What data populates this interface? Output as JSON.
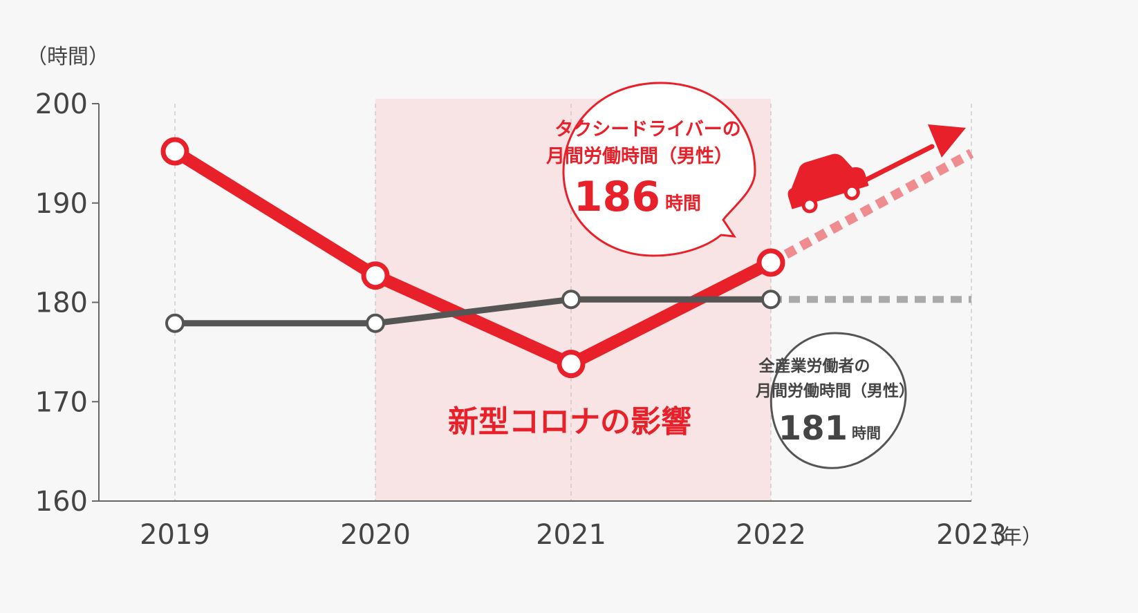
{
  "chart_data": {
    "type": "line",
    "y_unit_label": "（時間）",
    "x_unit_label": "（年）",
    "ylim": [
      160,
      200
    ],
    "y_ticks": [
      200,
      190,
      180,
      170,
      160
    ],
    "x_ticks": [
      "2019",
      "2020",
      "2021",
      "2022",
      "2023"
    ],
    "grid": "vertical dashed",
    "shaded_band": {
      "from": "2020",
      "to": "2022",
      "label": "新型コロナの影響",
      "color": "#f8e4e4"
    },
    "series": [
      {
        "name": "タクシードライバーの月間労働時間（男性）",
        "color": "#e8202a",
        "x": [
          "2019",
          "2020",
          "2021",
          "2022"
        ],
        "values": [
          195.2,
          182.7,
          173.8,
          184.0
        ],
        "projection": {
          "x": "2023",
          "value": 195.0
        }
      },
      {
        "name": "全産業労働者の月間労働時間（男性）",
        "color": "#555555",
        "x": [
          "2019",
          "2020",
          "2021",
          "2022"
        ],
        "values": [
          177.9,
          177.9,
          180.3,
          180.3
        ],
        "projection": {
          "x": "2023",
          "value": 180.3
        }
      }
    ],
    "callouts": [
      {
        "line1": "タクシードライバーの",
        "line2": "月間労働時間（男性）",
        "value": "186",
        "unit": "時間",
        "color": "#e8202a"
      },
      {
        "line1": "全産業労働者の",
        "line2": "月間労働時間（男性）",
        "value": "181",
        "unit": "時間",
        "color": "#555555"
      }
    ],
    "icons": [
      "taxi-car-icon",
      "trend-up-arrow-icon"
    ]
  }
}
